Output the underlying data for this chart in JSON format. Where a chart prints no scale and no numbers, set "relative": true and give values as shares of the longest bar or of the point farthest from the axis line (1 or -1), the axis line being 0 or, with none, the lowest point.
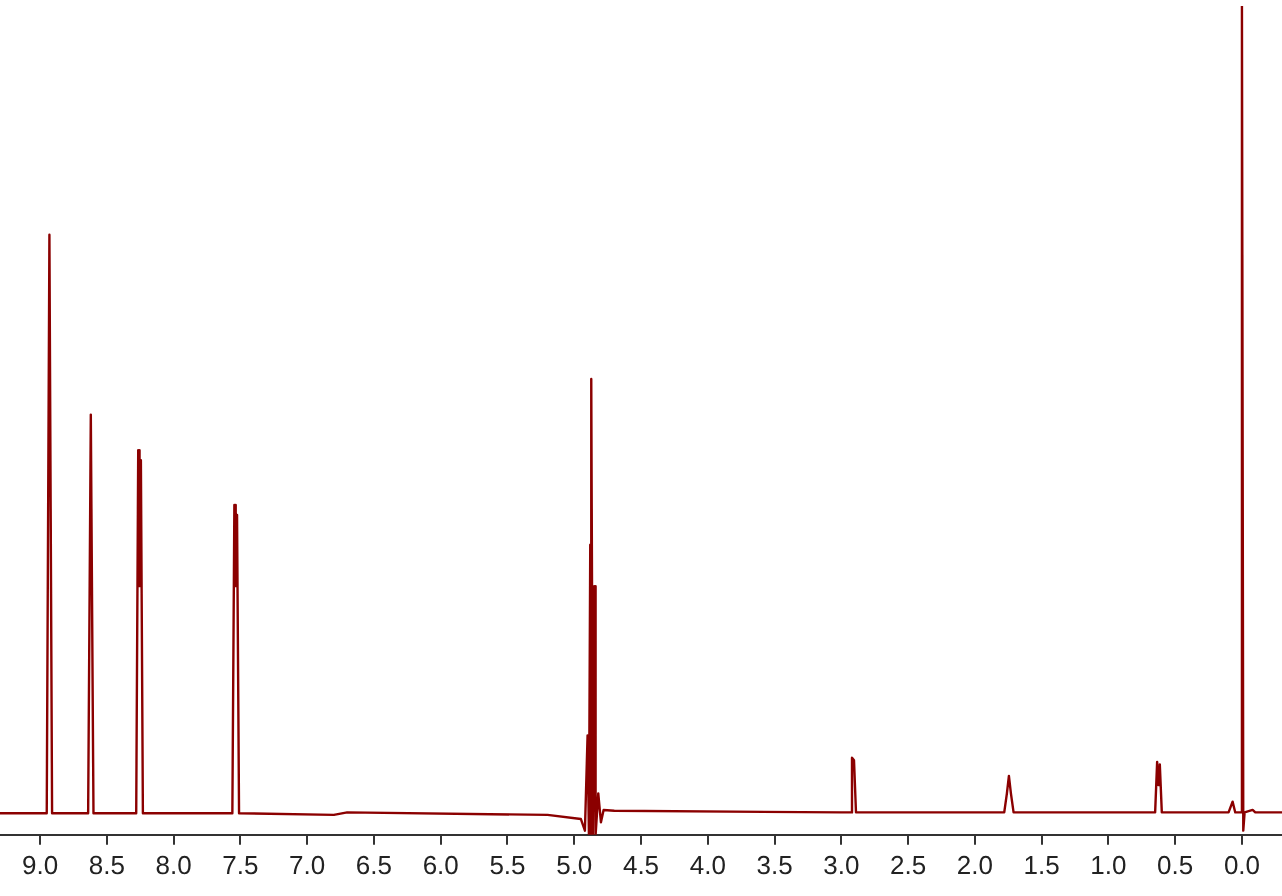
{
  "chart_data": {
    "type": "line",
    "relative": true,
    "color": "#8b0000",
    "marker": "none",
    "grid": false,
    "legend": false,
    "xlim": [
      9.3,
      -0.3
    ],
    "xticks": [
      {
        "value": 9,
        "label": "9.0"
      },
      {
        "value": 8.5,
        "label": "8.5"
      },
      {
        "value": 8,
        "label": "8.0"
      },
      {
        "value": 7.5,
        "label": "7.5"
      },
      {
        "value": 7,
        "label": "7.0"
      },
      {
        "value": 6.5,
        "label": "6.5"
      },
      {
        "value": 6,
        "label": "6.0"
      },
      {
        "value": 5.5,
        "label": "5.5"
      },
      {
        "value": 5,
        "label": "5.0"
      },
      {
        "value": 4.5,
        "label": "4.5"
      },
      {
        "value": 4,
        "label": "4.0"
      },
      {
        "value": 3.5,
        "label": "3.5"
      },
      {
        "value": 3,
        "label": "3.0"
      },
      {
        "value": 2.5,
        "label": "2.5"
      },
      {
        "value": 2,
        "label": "2.0"
      },
      {
        "value": 1.5,
        "label": "1.5"
      },
      {
        "value": 1,
        "label": "1.0"
      },
      {
        "value": 0.5,
        "label": "0.5"
      },
      {
        "value": 0,
        "label": "0.0"
      }
    ],
    "x": [
      9.3,
      8.95,
      8.93,
      8.91,
      8.64,
      8.62,
      8.6,
      8.28,
      8.265,
      8.255,
      8.245,
      8.23,
      7.56,
      7.545,
      7.535,
      7.525,
      7.51,
      6.8,
      6.7,
      5.2,
      4.95,
      4.92,
      4.9,
      4.89,
      4.88,
      4.875,
      4.87,
      4.86,
      4.85,
      4.84,
      4.82,
      4.8,
      4.78,
      4.7,
      3.0,
      2.93,
      2.92,
      2.905,
      2.89,
      1.78,
      1.76,
      1.745,
      1.73,
      1.71,
      0.65,
      0.635,
      0.625,
      0.615,
      0.6,
      0.1,
      0.07,
      0.05,
      0.01,
      0.0,
      -0.01,
      -0.02,
      -0.08,
      -0.1,
      -0.3
    ],
    "values": [
      0.026,
      0.026,
      0.724,
      0.026,
      0.026,
      0.507,
      0.026,
      0.026,
      0.464,
      0.3,
      0.452,
      0.026,
      0.026,
      0.398,
      0.3,
      0.386,
      0.026,
      0.024,
      0.027,
      0.024,
      0.019,
      0.005,
      0.12,
      0.0,
      0.35,
      0.0,
      0.55,
      0.0,
      0.3,
      0.0,
      0.05,
      0.015,
      0.03,
      0.029,
      0.027,
      0.027,
      0.093,
      0.09,
      0.027,
      0.027,
      0.05,
      0.071,
      0.05,
      0.027,
      0.027,
      0.088,
      0.06,
      0.085,
      0.027,
      0.027,
      0.04,
      0.027,
      0.027,
      1,
      0.005,
      0.027,
      0.03,
      0.027,
      0.027
    ]
  }
}
